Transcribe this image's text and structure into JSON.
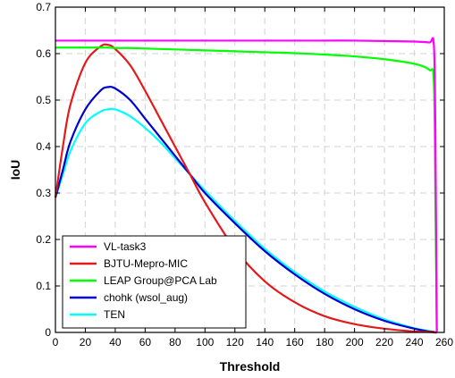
{
  "chart_data": {
    "type": "line",
    "title": "",
    "xlabel": "Threshold",
    "ylabel": "IoU",
    "xlim": [
      0,
      260
    ],
    "ylim": [
      0,
      0.7
    ],
    "xticks": [
      "0",
      "20",
      "40",
      "60",
      "80",
      "100",
      "120",
      "140",
      "160",
      "180",
      "200",
      "220",
      "240",
      "260"
    ],
    "yticks": [
      "0",
      "0.1",
      "0.2",
      "0.3",
      "0.4",
      "0.5",
      "0.6",
      "0.7"
    ],
    "grid": true,
    "legend_position": "bottom-left",
    "x": [
      0,
      5,
      10,
      20,
      30,
      35,
      40,
      50,
      60,
      70,
      80,
      90,
      100,
      120,
      140,
      160,
      180,
      200,
      220,
      240,
      250,
      253,
      254,
      255
    ],
    "series": [
      {
        "name": "VL-task3",
        "color": "#ff00ff",
        "values": [
          0.628,
          0.628,
          0.628,
          0.628,
          0.628,
          0.628,
          0.628,
          0.628,
          0.628,
          0.628,
          0.628,
          0.628,
          0.628,
          0.628,
          0.628,
          0.628,
          0.628,
          0.628,
          0.627,
          0.626,
          0.624,
          0.62,
          0.45,
          0.0
        ]
      },
      {
        "name": "BJTU-Mepro-MIC",
        "color": "#e31a1c",
        "values": [
          0.29,
          0.4,
          0.49,
          0.58,
          0.615,
          0.619,
          0.61,
          0.575,
          0.52,
          0.46,
          0.4,
          0.34,
          0.28,
          0.18,
          0.11,
          0.065,
          0.035,
          0.018,
          0.008,
          0.002,
          0.001,
          0.0,
          0.0,
          0.0
        ]
      },
      {
        "name": "LEAP Group@PCA Lab",
        "color": "#00ff00",
        "values": [
          0.613,
          0.613,
          0.613,
          0.613,
          0.613,
          0.613,
          0.612,
          0.612,
          0.611,
          0.61,
          0.609,
          0.608,
          0.607,
          0.605,
          0.603,
          0.601,
          0.598,
          0.594,
          0.588,
          0.578,
          0.565,
          0.54,
          0.3,
          0.0
        ]
      },
      {
        "name": "chohk (wsol_aug)",
        "color": "#0000cc",
        "values": [
          0.29,
          0.35,
          0.41,
          0.48,
          0.52,
          0.528,
          0.525,
          0.5,
          0.46,
          0.42,
          0.38,
          0.34,
          0.3,
          0.235,
          0.175,
          0.125,
          0.083,
          0.05,
          0.025,
          0.008,
          0.002,
          0.001,
          0.0,
          0.0
        ]
      },
      {
        "name": "TEN",
        "color": "#00ffff",
        "values": [
          0.29,
          0.34,
          0.39,
          0.45,
          0.475,
          0.48,
          0.48,
          0.465,
          0.44,
          0.41,
          0.375,
          0.34,
          0.305,
          0.24,
          0.18,
          0.13,
          0.088,
          0.055,
          0.028,
          0.009,
          0.003,
          0.001,
          0.0,
          0.0
        ]
      }
    ]
  }
}
